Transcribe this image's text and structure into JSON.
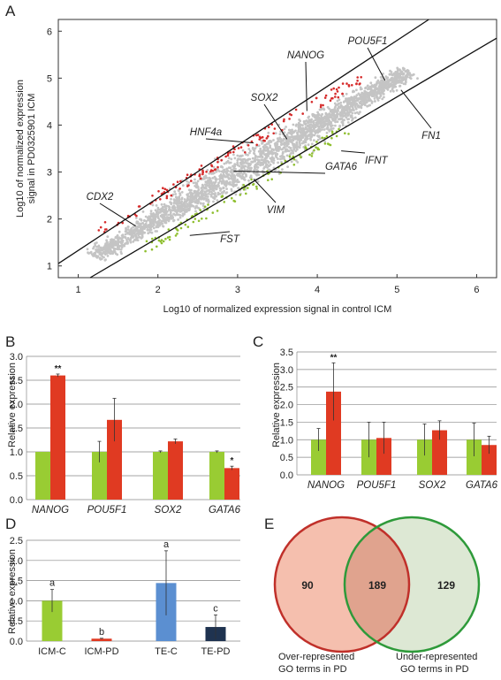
{
  "panels": {
    "A": "A",
    "B": "B",
    "C": "C",
    "D": "D",
    "E": "E"
  },
  "chart_data": [
    {
      "id": "A",
      "type": "scatter",
      "xlabel": "Log10 of normalized expression signal in control ICM",
      "ylabel_line1": "Log10 of normalized expression",
      "ylabel_line2": "signal in PD0325901 ICM",
      "xlim": [
        0.75,
        6.25
      ],
      "ylim": [
        0.75,
        6.25
      ],
      "xticks": [
        "1",
        "2",
        "3",
        "4",
        "5",
        "6"
      ],
      "yticks": [
        "1",
        "2",
        "3",
        "4",
        "5",
        "6"
      ],
      "colors": {
        "unchanged": "#c4c4c4",
        "up": "#d62b2b",
        "down": "#8fbf2f"
      },
      "lines": [
        {
          "name": "upper-fold-line",
          "x": [
            0.75,
            5.4
          ],
          "y": [
            1.05,
            6.25
          ]
        },
        {
          "name": "lower-fold-line",
          "x": [
            1.15,
            6.25
          ],
          "y": [
            0.75,
            5.85
          ]
        }
      ],
      "annotations": [
        {
          "label": "NANOG",
          "x": 3.87,
          "y": 4.3
        },
        {
          "label": "POU5F1",
          "x": 4.85,
          "y": 4.95
        },
        {
          "label": "SOX2",
          "x": 3.62,
          "y": 3.7
        },
        {
          "label": "HNF4a",
          "x": 3.2,
          "y": 3.62
        },
        {
          "label": "GATA6",
          "x": 2.95,
          "y": 3.02
        },
        {
          "label": "IFNT",
          "x": 4.3,
          "y": 3.45
        },
        {
          "label": "FN1",
          "x": 5.05,
          "y": 4.75
        },
        {
          "label": "CDX2",
          "x": 1.72,
          "y": 1.85
        },
        {
          "label": "VIM",
          "x": 3.2,
          "y": 2.85
        },
        {
          "label": "FST",
          "x": 2.4,
          "y": 1.65
        }
      ]
    },
    {
      "id": "B",
      "type": "bar",
      "ylabel": "Relative expression",
      "ylim": [
        0,
        3.0
      ],
      "yticks": [
        "0.0",
        "0.5",
        "1.0",
        "1.5",
        "2.0",
        "2.5",
        "3.0"
      ],
      "categories": [
        "NANOG",
        "POU5F1",
        "SOX2",
        "GATA6"
      ],
      "series": [
        {
          "values": [
            1.0,
            1.0,
            1.0,
            1.0
          ],
          "errors": [
            0.0,
            0.22,
            0.02,
            0.02
          ],
          "color": "#99cc33"
        },
        {
          "values": [
            2.6,
            1.67,
            1.22,
            0.66
          ],
          "errors": [
            0.03,
            0.45,
            0.05,
            0.04
          ],
          "color": "#e03a22"
        }
      ],
      "significance": [
        {
          "category": 0,
          "series": 1,
          "label": "**"
        },
        {
          "category": 3,
          "series": 1,
          "label": "*"
        }
      ]
    },
    {
      "id": "C",
      "type": "bar",
      "ylabel": "Relative expression",
      "ylim": [
        0,
        3.5
      ],
      "yticks": [
        "0.0",
        "0.5",
        "1.0",
        "1.5",
        "2.0",
        "2.5",
        "3.0",
        "3.5"
      ],
      "categories": [
        "NANOG",
        "POU5F1",
        "SOX2",
        "GATA6"
      ],
      "series": [
        {
          "values": [
            1.0,
            1.0,
            1.0,
            1.0
          ],
          "errors": [
            0.32,
            0.5,
            0.45,
            0.47
          ],
          "color": "#99cc33"
        },
        {
          "values": [
            2.37,
            1.05,
            1.27,
            0.85
          ],
          "errors": [
            0.82,
            0.45,
            0.27,
            0.25
          ],
          "color": "#e03a22"
        }
      ],
      "significance": [
        {
          "category": 0,
          "series": 1,
          "label": "**"
        }
      ]
    },
    {
      "id": "D",
      "type": "bar",
      "ylabel": "Relative expression",
      "ylim": [
        0,
        2.5
      ],
      "yticks": [
        "0.0",
        "0.5",
        "1.0",
        "1.5",
        "2.0",
        "2.5"
      ],
      "categories": [
        "ICM-C",
        "ICM-PD",
        "TE-C",
        "TE-PD"
      ],
      "values": [
        1.0,
        0.06,
        1.44,
        0.35
      ],
      "errors": [
        0.28,
        0.01,
        0.8,
        0.3
      ],
      "colors": [
        "#99cc33",
        "#e03a22",
        "#5b8fd1",
        "#1f3350"
      ],
      "letters": [
        "a",
        "b",
        "a",
        "c"
      ]
    },
    {
      "id": "E",
      "type": "venn",
      "sets": [
        {
          "label_line1": "Over-represented",
          "label_line2": "GO terms in PD",
          "only": "90",
          "stroke": "#c0302a",
          "fill": "#f5bfae"
        },
        {
          "label_line1": "Under-represented",
          "label_line2": "GO terms in PD",
          "only": "129",
          "stroke": "#2e9a3a",
          "fill": "#dde8d4"
        }
      ],
      "overlap": "189",
      "overlap_fill": "#e0a38e"
    }
  ]
}
